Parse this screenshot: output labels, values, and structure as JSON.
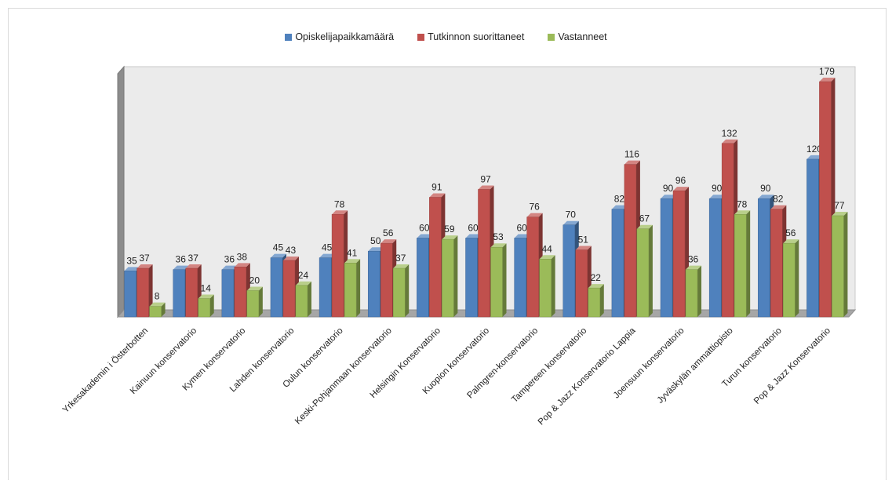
{
  "chart_data": {
    "type": "bar",
    "categories": [
      "Yrkesakademin i Österbotten",
      "Kainuun konservatorio",
      "Kymen konservatorio",
      "Lahden konservatorio",
      "Oulun konservatorio",
      "Keski-Pohjanmaan konservatorio",
      "Helsingin Konservatorio",
      "Kuopion konservatorio",
      "Palmgren-konservatorio",
      "Tampereen konservatorio",
      "Pop & Jazz Konservatorio Lappia",
      "Joensuun konservatorio",
      "Jyväskylän ammattiopisto",
      "Turun konservatorio",
      "Pop & Jazz Konservatorio"
    ],
    "series": [
      {
        "name": "Opiskelijapaikkamäärä",
        "color": "#4f81bd",
        "values": [
          35,
          36,
          36,
          45,
          45,
          50,
          60,
          60,
          60,
          70,
          82,
          90,
          90,
          90,
          120
        ]
      },
      {
        "name": "Tutkinnon suorittaneet",
        "color": "#c0504d",
        "values": [
          37,
          37,
          38,
          43,
          78,
          56,
          91,
          97,
          76,
          51,
          116,
          96,
          132,
          82,
          179
        ]
      },
      {
        "name": "Vastanneet",
        "color": "#9bbb59",
        "values": [
          8,
          14,
          20,
          24,
          41,
          37,
          59,
          53,
          44,
          22,
          67,
          36,
          78,
          56,
          77
        ]
      }
    ],
    "ylim": [
      0,
      185
    ],
    "grid": false,
    "legend_position": "top",
    "style": "3d-clustered-column"
  }
}
